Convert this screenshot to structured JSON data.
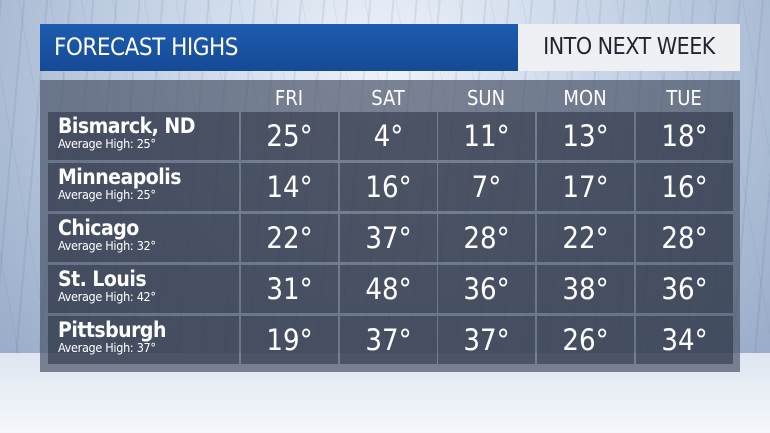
{
  "header": {
    "title": "FORECAST HIGHS",
    "subtitle": "INTO NEXT WEEK"
  },
  "colors": {
    "title_bar": "#1d5cb0",
    "subtitle_box": "#eef0f3",
    "panel": "#4e586c"
  },
  "chart_data": {
    "type": "table",
    "title": "FORECAST HIGHS",
    "subtitle": "INTO NEXT WEEK",
    "columns": [
      "FRI",
      "SAT",
      "SUN",
      "MON",
      "TUE"
    ],
    "rows": [
      {
        "city": "Bismarck, ND",
        "average": "Average High: 25°",
        "values": [
          "25°",
          "4°",
          "11°",
          "13°",
          "18°"
        ]
      },
      {
        "city": "Minneapolis",
        "average": "Average High: 25°",
        "values": [
          "14°",
          "16°",
          "7°",
          "17°",
          "16°"
        ]
      },
      {
        "city": "Chicago",
        "average": "Average High: 32°",
        "values": [
          "22°",
          "37°",
          "28°",
          "22°",
          "28°"
        ]
      },
      {
        "city": "St. Louis",
        "average": "Average High: 42°",
        "values": [
          "31°",
          "48°",
          "36°",
          "38°",
          "36°"
        ]
      },
      {
        "city": "Pittsburgh",
        "average": "Average High: 37°",
        "values": [
          "19°",
          "37°",
          "37°",
          "26°",
          "34°"
        ]
      }
    ]
  }
}
